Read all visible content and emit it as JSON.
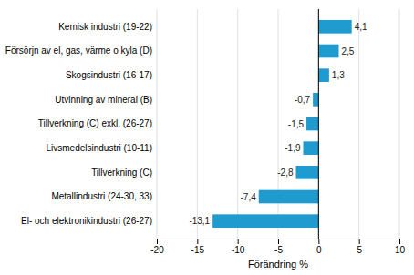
{
  "chart_data": {
    "type": "bar",
    "orientation": "horizontal",
    "categories": [
      "El- och elektronikindustri (26-27)",
      "Metallindustri (24-30, 33)",
      "Tillverkning (C)",
      "Livsmedelsindustri (10-11)",
      "Tillverkning (C) exkl. (26-27)",
      "Utvinning av mineral (B)",
      "Skogsindustri (16-17)",
      "Försörjn av el, gas, värme o kyla (D)",
      "Kemisk industri (19-22)"
    ],
    "values": [
      -13.1,
      -7.4,
      -2.8,
      -1.9,
      -1.5,
      -0.7,
      1.3,
      2.5,
      4.1
    ],
    "value_labels": [
      "-13,1",
      "-7,4",
      "-2,8",
      "-1,9",
      "-1,5",
      "-0,7",
      "1,3",
      "2,5",
      "4,1"
    ],
    "color": "#1f9bcf",
    "xlim": [
      -20,
      10
    ],
    "xticks": [
      -20,
      -15,
      -10,
      -5,
      0,
      5,
      10
    ],
    "xlabel": "Förändring %",
    "grid": true
  }
}
